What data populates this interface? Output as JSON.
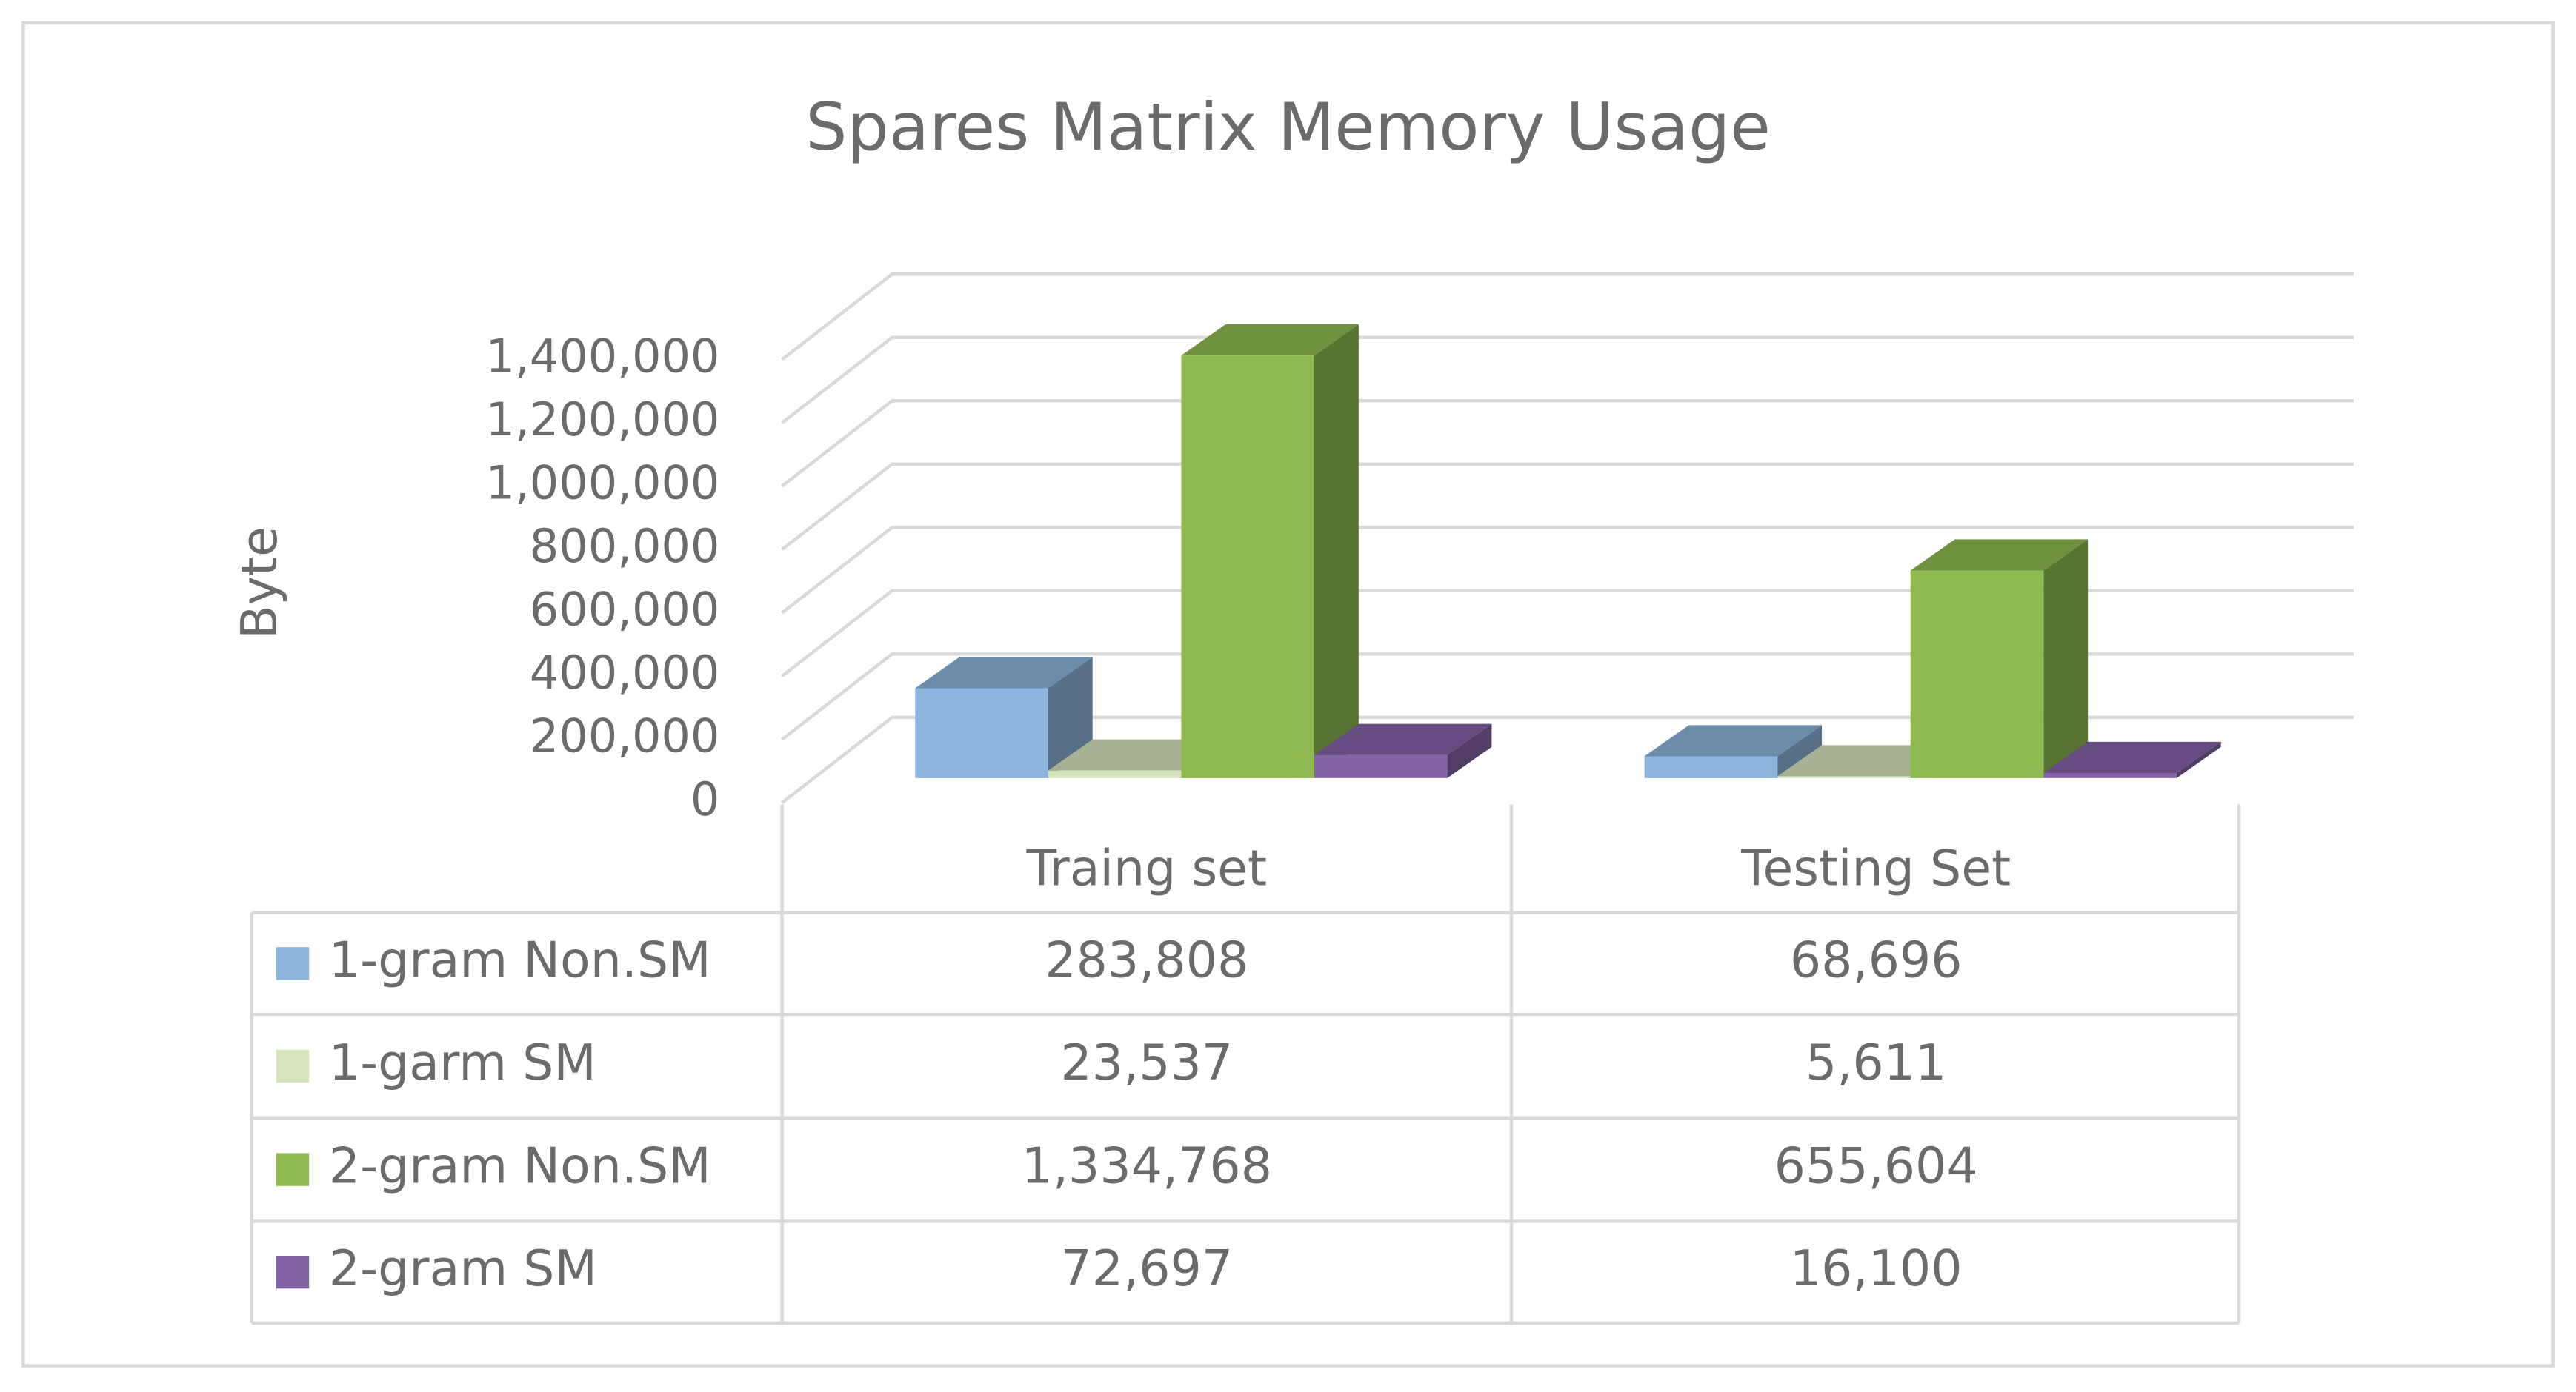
{
  "chart_data": {
    "type": "bar3d",
    "title": "Spares Matrix Memory Usage",
    "y_label": "Byte",
    "categories": [
      "Traing set",
      "Testing Set"
    ],
    "series": [
      {
        "name": "1-gram Non.SM",
        "color": "#8cb4dc",
        "values": [
          283808,
          68696
        ],
        "value_labels": [
          "283,808",
          "68,696"
        ]
      },
      {
        "name": "1-garm SM",
        "color": "#d5e4bd",
        "values": [
          23537,
          5611
        ],
        "value_labels": [
          "23,537",
          "5,611"
        ]
      },
      {
        "name": "2-gram Non.SM",
        "color": "#8dbb51",
        "values": [
          1334768,
          655604
        ],
        "value_labels": [
          "1,334,768",
          "655,604"
        ]
      },
      {
        "name": "2-gram SM",
        "color": "#8462a6",
        "values": [
          72697,
          16100
        ],
        "value_labels": [
          "72,697",
          "16,100"
        ]
      }
    ],
    "ylim": [
      0,
      1400000
    ],
    "yticks": [
      0,
      {
        "value": 200000,
        "label": "200,000"
      },
      {
        "value": 400000,
        "label": "400,000"
      },
      {
        "value": 600000,
        "label": "600,000"
      },
      {
        "value": 800000,
        "label": "800,000"
      },
      {
        "value": 1000000,
        "label": "1,000,000"
      },
      {
        "value": 1200000,
        "label": "1,200,000"
      },
      {
        "value": 1400000,
        "label": "1,400,000"
      }
    ],
    "grid": true,
    "data_table": true
  }
}
